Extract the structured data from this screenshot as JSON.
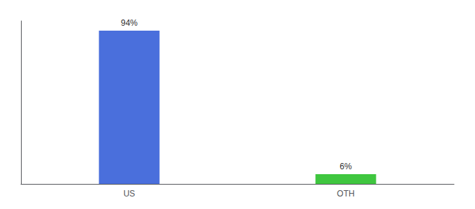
{
  "chart_data": {
    "type": "bar",
    "categories": [
      "US",
      "OTH"
    ],
    "values": [
      94,
      6
    ],
    "value_labels": [
      "94%",
      "6%"
    ],
    "data_labels": true,
    "colors": [
      "#4a6fdc",
      "#3fc63f"
    ],
    "ylim": [
      0,
      100
    ],
    "tick_labels": "x",
    "grid": false
  }
}
